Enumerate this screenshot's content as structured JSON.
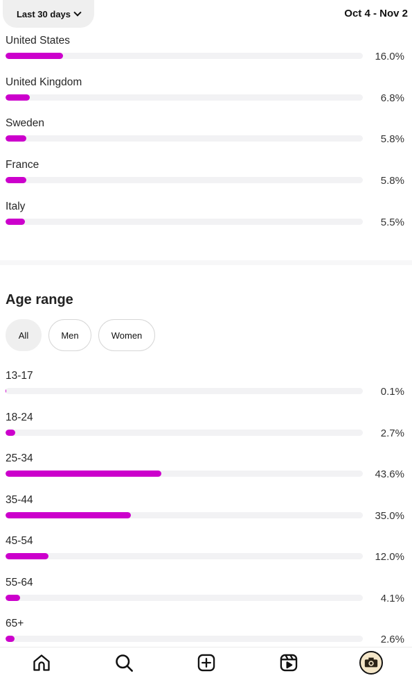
{
  "header": {
    "date_filter_label": "Last 30 days",
    "date_range": "Oct 4 - Nov 2"
  },
  "countries": [
    {
      "name": "United States",
      "percent": 16.0,
      "label": "16.0%"
    },
    {
      "name": "United Kingdom",
      "percent": 6.8,
      "label": "6.8%"
    },
    {
      "name": "Sweden",
      "percent": 5.8,
      "label": "5.8%"
    },
    {
      "name": "France",
      "percent": 5.8,
      "label": "5.8%"
    },
    {
      "name": "Italy",
      "percent": 5.5,
      "label": "5.5%"
    }
  ],
  "age_range": {
    "title": "Age range",
    "filters": [
      "All",
      "Men",
      "Women"
    ],
    "selected_filter": "All",
    "rows": [
      {
        "range": "13-17",
        "percent": 0.1,
        "label": "0.1%"
      },
      {
        "range": "18-24",
        "percent": 2.7,
        "label": "2.7%"
      },
      {
        "range": "25-34",
        "percent": 43.6,
        "label": "43.6%"
      },
      {
        "range": "35-44",
        "percent": 35.0,
        "label": "35.0%"
      },
      {
        "range": "45-54",
        "percent": 12.0,
        "label": "12.0%"
      },
      {
        "range": "55-64",
        "percent": 4.1,
        "label": "4.1%"
      },
      {
        "range": "65+",
        "percent": 2.6,
        "label": "2.6%"
      }
    ]
  },
  "colors": {
    "bar_fill": "#cc00cc",
    "bar_track": "#f2f2f4"
  },
  "bottom_nav": [
    "home-icon",
    "search-icon",
    "create-icon",
    "reels-icon",
    "profile-avatar"
  ]
}
